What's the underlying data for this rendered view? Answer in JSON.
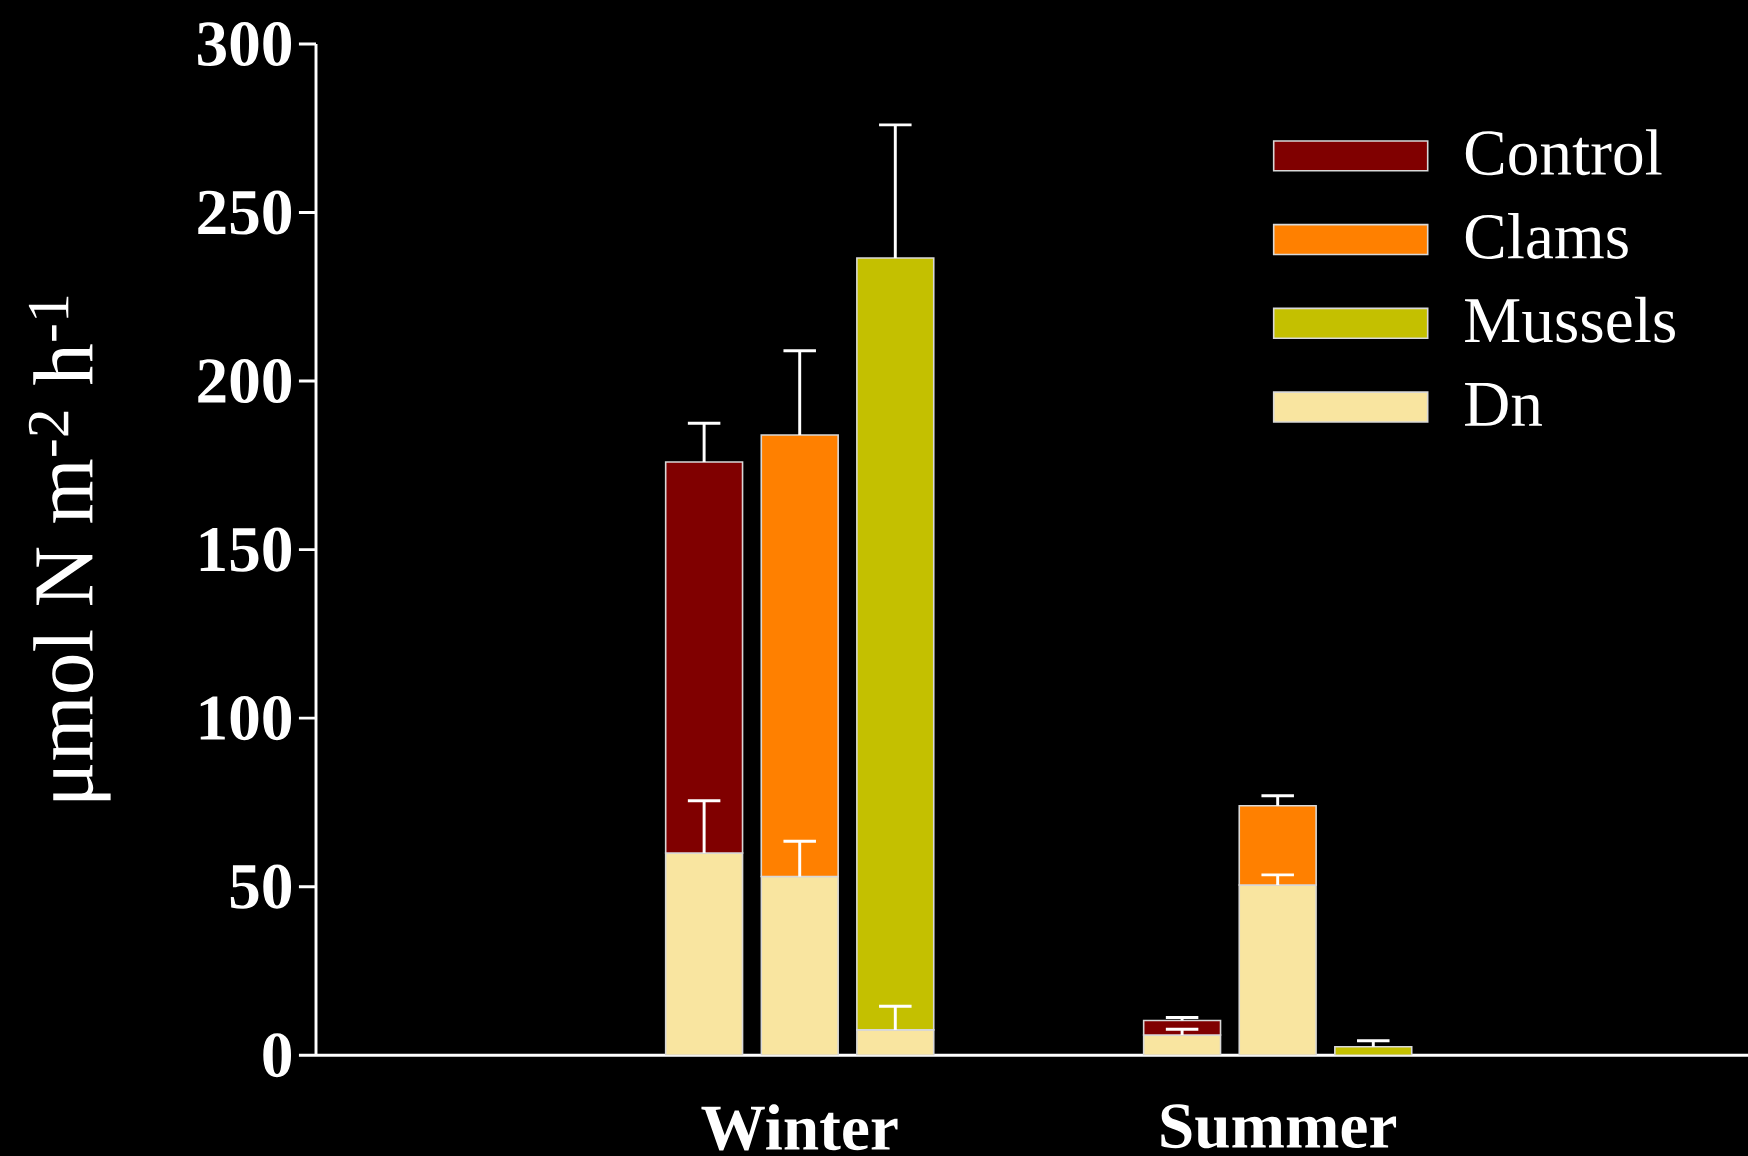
{
  "chart_data": {
    "type": "bar",
    "stacked": true,
    "categories": [
      null,
      "Winter",
      null,
      null,
      null,
      null,
      "Summer",
      null
    ],
    "ylabel": "μmol N m$^{-2}$ h$^{-1}$",
    "ylim": [
      0,
      300
    ],
    "yticks": [
      0,
      50,
      100,
      150,
      200,
      250,
      300
    ],
    "legend": "top right",
    "series": [
      {
        "name": "Dn",
        "color": "#f9e5a0",
        "values": [
          60,
          53,
          7.5,
          null,
          null,
          6,
          50.5,
          null
        ],
        "errors": [
          [
            60,
            75.5
          ],
          [
            53,
            63.5
          ],
          [
            7.5,
            14.5
          ],
          null,
          null,
          [
            6,
            7.7
          ],
          [
            50.5,
            53.5
          ],
          null
        ]
      },
      {
        "name": "Control",
        "color": "#800000",
        "values": [
          116,
          null,
          null,
          null,
          null,
          4.3,
          null,
          null
        ],
        "errors": [
          [
            176,
            187.5
          ],
          null,
          null,
          null,
          null,
          [
            10.3,
            11.2
          ],
          null,
          null
        ]
      },
      {
        "name": "Clams",
        "color": "#ff8000",
        "values": [
          null,
          131,
          null,
          null,
          null,
          null,
          23.5,
          null
        ],
        "errors": [
          null,
          [
            184,
            209
          ],
          null,
          null,
          null,
          null,
          [
            74,
            77
          ],
          null
        ]
      },
      {
        "name": "Mussels",
        "color": "#c4c000",
        "values": [
          null,
          null,
          229,
          null,
          null,
          null,
          null,
          2.5
        ],
        "errors": [
          null,
          null,
          [
            236.5,
            276
          ],
          null,
          null,
          null,
          null,
          [
            2.5,
            4.3
          ]
        ]
      }
    ]
  }
}
